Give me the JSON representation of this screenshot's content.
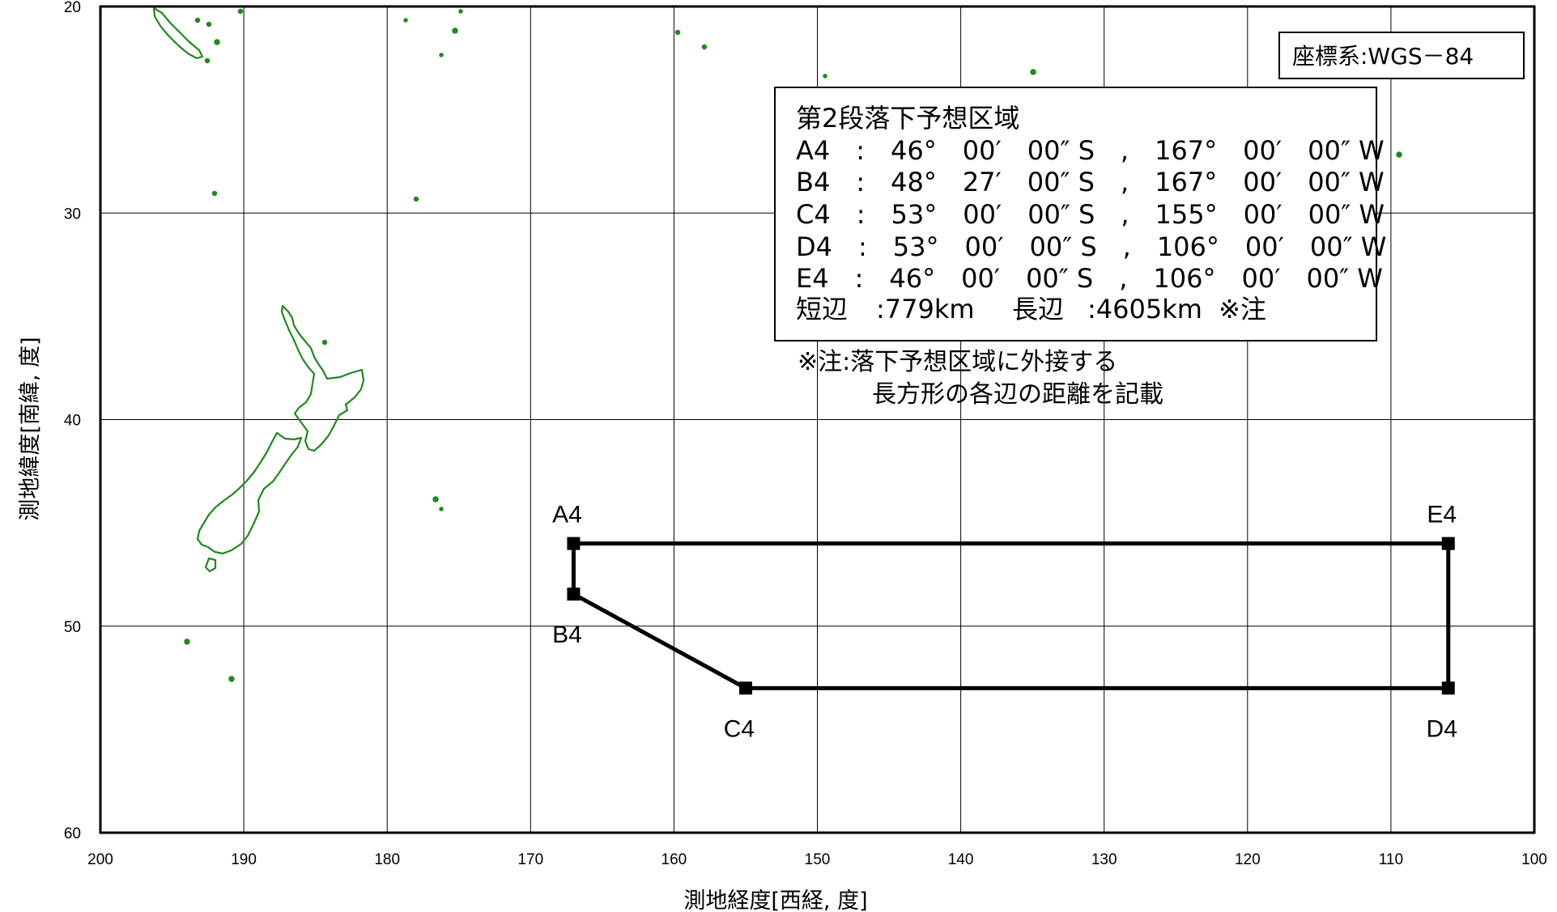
{
  "map": {
    "coordinate_system": "座標系:WGS－84",
    "x_axis_label": "測地経度[西経, 度]",
    "y_axis_label": "測地緯度[南緯, 度]",
    "x_axis": {
      "min": 100,
      "max": 200,
      "ticks": [
        200,
        190,
        180,
        170,
        160,
        150,
        140,
        130,
        120,
        110,
        100
      ]
    },
    "y_axis": {
      "min": 20,
      "max": 60,
      "ticks": [
        20,
        30,
        40,
        50,
        60
      ]
    },
    "drop_zone": {
      "title": "第2段落下予想区域",
      "points": [
        {
          "id": "A4",
          "text": "A4　:　46°　00′　00″ S　,　167°　00′　00″ W",
          "lat": 46.0,
          "lon": 167.0,
          "label_pos": "above"
        },
        {
          "id": "B4",
          "text": "B4　:　48°　27′　00″ S　,　167°　00′　00″ W",
          "lat": 48.45,
          "lon": 167.0,
          "label_pos": "below"
        },
        {
          "id": "C4",
          "text": "C4　:　53°　00′　00″ S　,　155°　00′　00″ W",
          "lat": 53.0,
          "lon": 155.0,
          "label_pos": "below"
        },
        {
          "id": "D4",
          "text": "D4　:　53°　00′　00″ S　,　106°　00′　00″ W",
          "lat": 53.0,
          "lon": 106.0,
          "label_pos": "below"
        },
        {
          "id": "E4",
          "text": "E4　:　46°　00′　00″ S　,　106°　00′　00″ W",
          "lat": 46.0,
          "lon": 106.0,
          "label_pos": "above"
        }
      ],
      "polygon_order": [
        "A4",
        "B4",
        "C4",
        "D4",
        "E4"
      ],
      "short_side_label": "短辺",
      "short_side_value": ":779km",
      "long_side_label": "長辺",
      "long_side_value": ":4605km",
      "note_ref": "※注"
    },
    "note": {
      "line1": "※注:落下予想区域に外接する",
      "line2": "長方形の各辺の距離を記載"
    },
    "colors": {
      "coastline": "#1f8a1f",
      "zone": "#000000",
      "grid": "#000000"
    }
  }
}
